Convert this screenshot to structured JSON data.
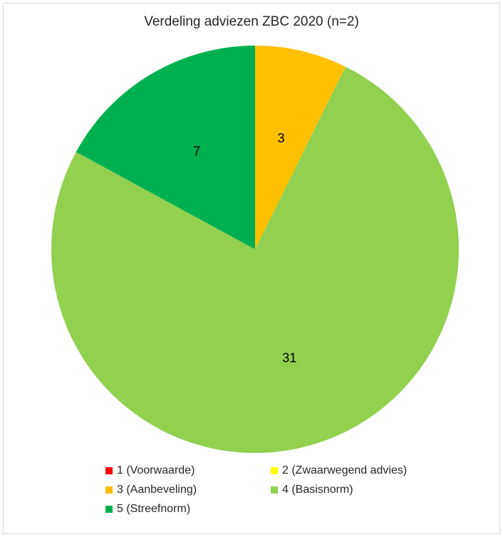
{
  "chart_data": {
    "type": "pie",
    "title": "Verdeling adviezen ZBC 2020 (n=2)",
    "categories": [
      "1 (Voorwaarde)",
      "2 (Zwaarwegend advies)",
      "3 (Aanbeveling)",
      "4 (Basisnorm)",
      "5 (Streefnorm)"
    ],
    "values": [
      0,
      0,
      3,
      31,
      7
    ],
    "colors": [
      "#ff0000",
      "#ffff00",
      "#ffc000",
      "#92d050",
      "#00b050"
    ],
    "data_labels": [
      "",
      "",
      "3",
      "31",
      "7"
    ],
    "legend_position": "bottom"
  }
}
